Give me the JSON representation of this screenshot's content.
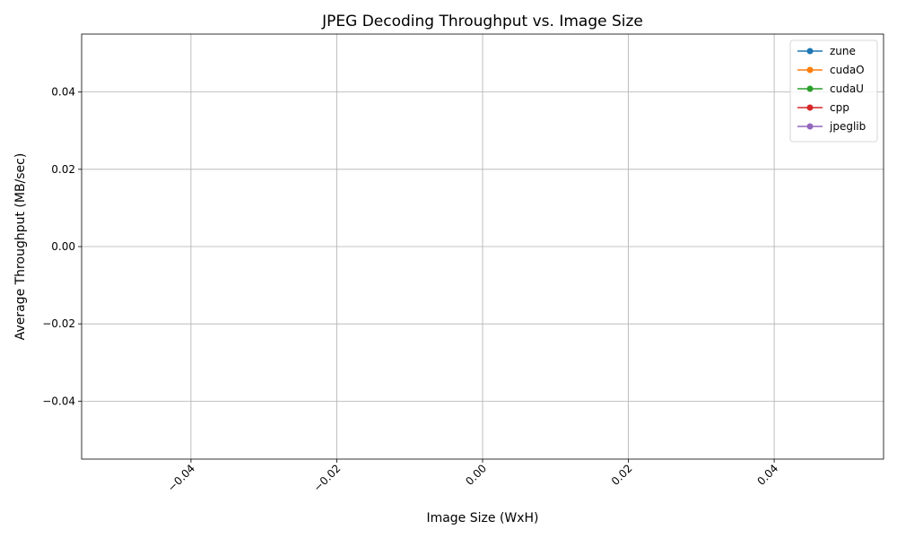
{
  "chart_data": {
    "type": "line",
    "title": "JPEG Decoding Throughput vs. Image Size",
    "xlabel": "Image Size (WxH)",
    "ylabel": "Average Throughput (MB/sec)",
    "xlim": [
      -0.055,
      0.055
    ],
    "ylim": [
      -0.055,
      0.055
    ],
    "x_ticks": [
      -0.04,
      -0.02,
      0.0,
      0.02,
      0.04
    ],
    "x_tick_labels": [
      "−0.04",
      "−0.02",
      "0.00",
      "0.02",
      "0.04"
    ],
    "y_ticks": [
      -0.04,
      -0.02,
      0.0,
      0.02,
      0.04
    ],
    "y_tick_labels": [
      "−0.04",
      "−0.02",
      "0.00",
      "0.02",
      "0.04"
    ],
    "grid": true,
    "legend_position": "top-right",
    "series": [
      {
        "name": "zune",
        "color": "#1f77b4",
        "x": [],
        "y": []
      },
      {
        "name": "cudaO",
        "color": "#ff7f0e",
        "x": [],
        "y": []
      },
      {
        "name": "cudaU",
        "color": "#2ca02c",
        "x": [],
        "y": []
      },
      {
        "name": "cpp",
        "color": "#d62728",
        "x": [],
        "y": []
      },
      {
        "name": "jpeglib",
        "color": "#9467bd",
        "x": [],
        "y": []
      }
    ]
  }
}
